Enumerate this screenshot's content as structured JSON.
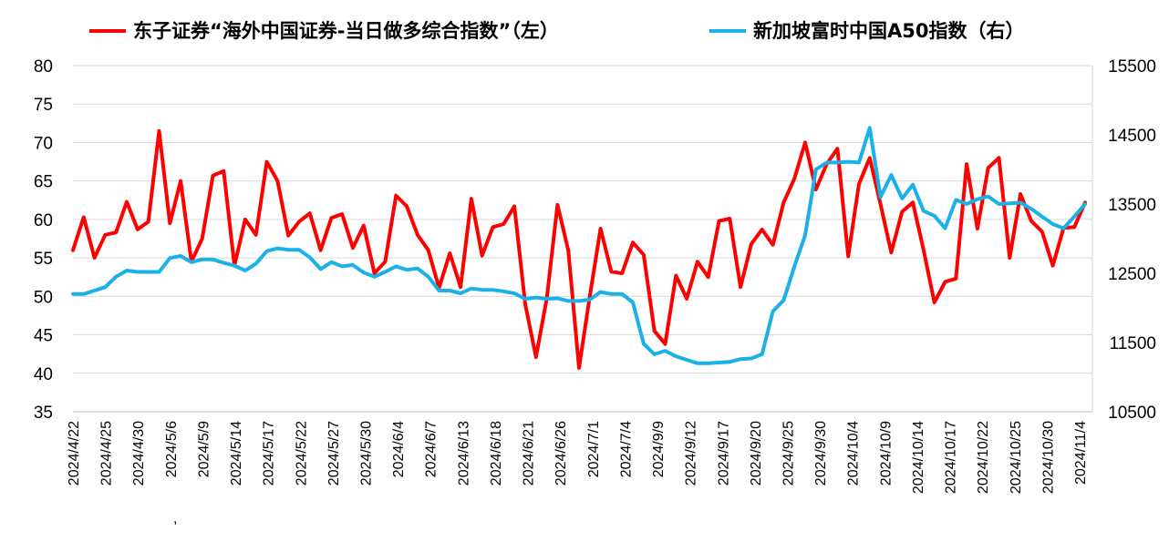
{
  "chart_data": {
    "type": "line",
    "legend_position": "top",
    "grid": true,
    "left_axis": {
      "min": 35,
      "max": 80,
      "ticks": [
        35,
        40,
        45,
        50,
        55,
        60,
        65,
        70,
        75,
        80
      ]
    },
    "right_axis": {
      "min": 10500,
      "max": 15500,
      "ticks": [
        10500,
        11500,
        12500,
        13500,
        14500,
        15500
      ]
    },
    "x_tick_labels": [
      "2024/4/22",
      "2024/4/25",
      "2024/4/30",
      "2024/5/6",
      "2024/5/9",
      "2024/5/14",
      "2024/5/17",
      "2024/5/22",
      "2024/5/27",
      "2024/5/30",
      "2024/6/4",
      "2024/6/7",
      "2024/6/13",
      "2024/6/18",
      "2024/6/21",
      "2024/6/26",
      "2024/7/1",
      "2024/7/4",
      "2024/9/9",
      "2024/9/12",
      "2024/9/17",
      "2024/9/20",
      "2024/9/25",
      "2024/9/30",
      "2024/10/4",
      "2024/10/9",
      "2024/10/14",
      "2024/10/17",
      "2024/10/22",
      "2024/10/25",
      "2024/10/30",
      "2024/11/4"
    ],
    "stray_mark": ",",
    "series": [
      {
        "name": "东子证券“海外中国证券-当日做多综合指数”（左）",
        "color": "#ff0000",
        "axis": "left",
        "values": [
          56,
          60.3,
          55,
          58,
          58.3,
          62.3,
          58.7,
          59.7,
          71.5,
          59.5,
          65,
          54.5,
          57.5,
          65.7,
          66.3,
          54,
          60,
          58,
          67.5,
          65,
          57.9,
          59.7,
          60.8,
          56,
          60.2,
          60.7,
          56.3,
          59.2,
          53,
          54.5,
          63.1,
          61.7,
          58,
          56,
          51.1,
          55.6,
          51.2,
          62.7,
          55.3,
          59,
          59.4,
          61.7,
          49,
          42.1,
          49.7,
          61.9,
          56,
          40.7,
          50,
          58.8,
          53.2,
          53,
          57,
          55.4,
          45.5,
          43.8,
          52.7,
          49.7,
          54.5,
          52.5,
          59.8,
          60.1,
          51.2,
          56.8,
          58.7,
          56.7,
          62.2,
          65.3,
          70,
          63.9,
          67.2,
          69.2,
          55.2,
          64.6,
          68,
          62,
          55.7,
          61,
          62.2,
          56,
          49.2,
          51.9,
          52.3,
          67.2,
          58.8,
          66.7,
          68,
          55,
          63.3,
          59.8,
          58.4,
          54,
          58.9,
          59,
          62.2
        ]
      },
      {
        "name": "新加坡富时中国A50指数（右）",
        "color": "#1ab0e8",
        "axis": "right",
        "values": [
          12200,
          12200,
          12250,
          12300,
          12450,
          12540,
          12520,
          12520,
          12520,
          12720,
          12750,
          12660,
          12700,
          12700,
          12650,
          12610,
          12540,
          12640,
          12820,
          12860,
          12840,
          12840,
          12730,
          12560,
          12660,
          12600,
          12620,
          12510,
          12450,
          12520,
          12600,
          12550,
          12570,
          12450,
          12250,
          12250,
          12210,
          12280,
          12260,
          12260,
          12240,
          12210,
          12130,
          12150,
          12130,
          12140,
          12100,
          12100,
          12120,
          12230,
          12200,
          12200,
          12080,
          11480,
          11330,
          11380,
          11300,
          11250,
          11200,
          11200,
          11210,
          11220,
          11260,
          11270,
          11330,
          11950,
          12110,
          12600,
          13050,
          14000,
          14100,
          14100,
          14110,
          14100,
          14600,
          13600,
          13920,
          13580,
          13780,
          13400,
          13330,
          13150,
          13560,
          13500,
          13570,
          13610,
          13500,
          13510,
          13520,
          13430,
          13320,
          13210,
          13150,
          13320,
          13500
        ]
      }
    ]
  }
}
